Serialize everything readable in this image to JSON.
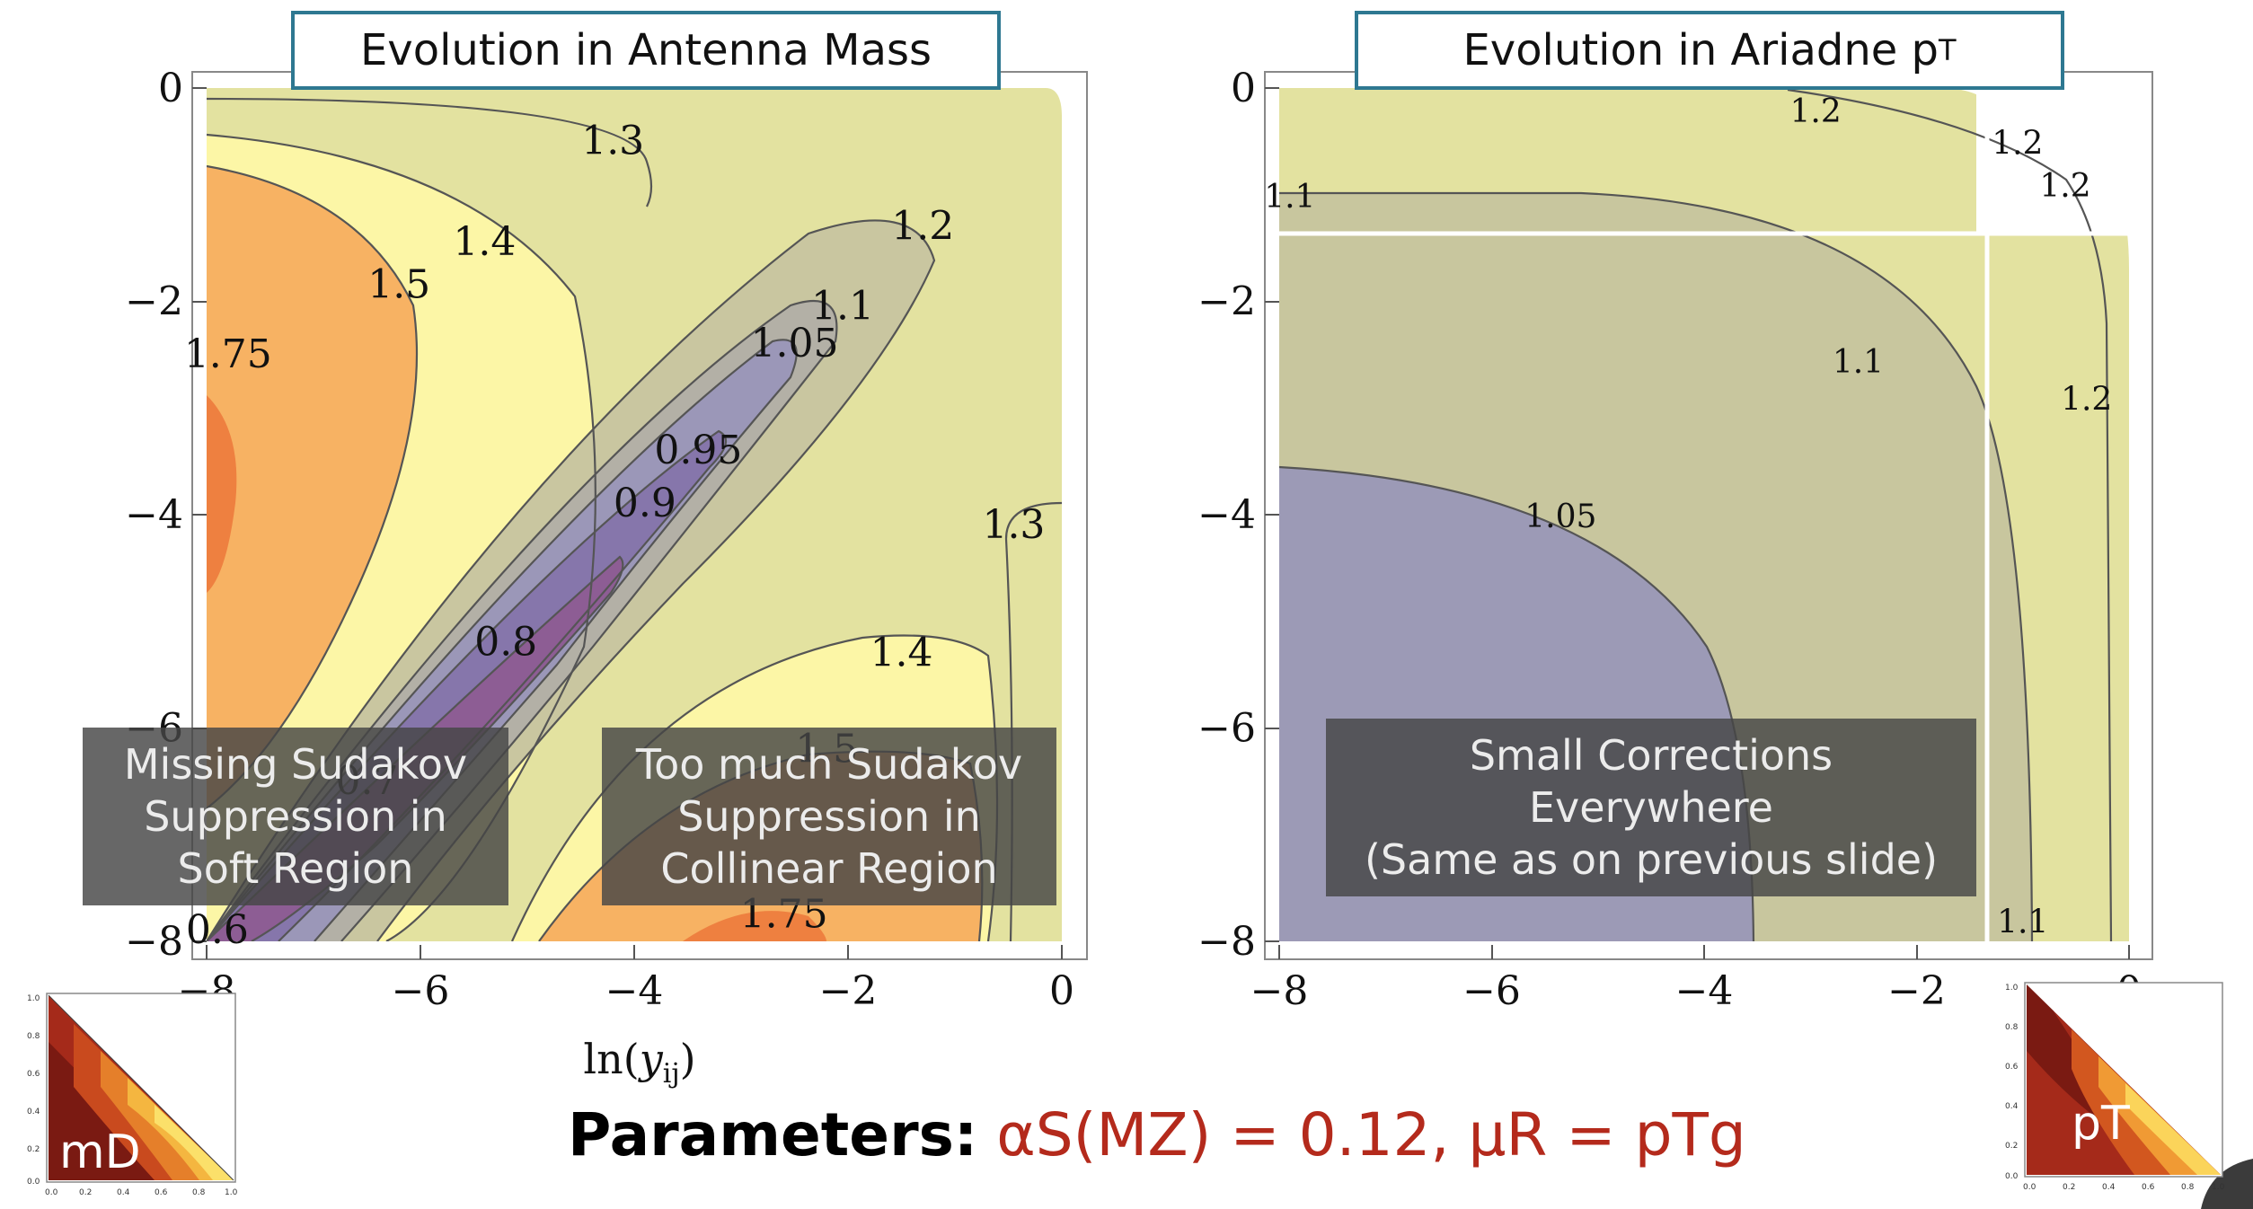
{
  "titles": {
    "left_prefix": "Evolution in Antenna Mass",
    "right_prefix": "Evolution in Ariadne p",
    "right_sub": "T"
  },
  "overlays": {
    "left1": "Missing Sudakov\nSuppression in\nSoft Region",
    "left2": "Too much Sudakov\nSuppression in\nCollinear Region",
    "right": "Small Corrections\nEverywhere\n(Same as on previous slide)"
  },
  "params": {
    "label": "Parameters:",
    "value": "αS(MZ) = 0.12, μR = pTg"
  },
  "thumbs": {
    "left_label": "mD",
    "right_label": "pT"
  },
  "chart_data": [
    {
      "type": "heatmap",
      "title": "Evolution in Antenna Mass",
      "xlabel": "ln(y_ij)",
      "ylabel": "",
      "xlim": [
        -8,
        0
      ],
      "ylim": [
        -8,
        0
      ],
      "xticks": [
        "−8",
        "−6",
        "−4",
        "−2",
        "0"
      ],
      "yticks": [
        "0",
        "−2",
        "−4",
        "−6",
        "−8"
      ],
      "contour_labels": [
        {
          "text": "1.3",
          "x": -4.2,
          "y": -0.5
        },
        {
          "text": "1.4",
          "x": -5.4,
          "y": -1.45
        },
        {
          "text": "1.5",
          "x": -6.2,
          "y": -1.85
        },
        {
          "text": "1.75",
          "x": -7.8,
          "y": -2.5
        },
        {
          "text": "1.2",
          "x": -1.3,
          "y": -1.3
        },
        {
          "text": "1.1",
          "x": -2.05,
          "y": -2.05
        },
        {
          "text": "1.05",
          "x": -2.5,
          "y": -2.4
        },
        {
          "text": "0.95",
          "x": -3.4,
          "y": -3.4
        },
        {
          "text": "0.9",
          "x": -3.9,
          "y": -3.9
        },
        {
          "text": "1.3",
          "x": -0.45,
          "y": -4.1
        },
        {
          "text": "0.8",
          "x": -5.2,
          "y": -5.2
        },
        {
          "text": "1.4",
          "x": -1.5,
          "y": -5.3
        },
        {
          "text": "0.7",
          "x": -6.5,
          "y": -6.5
        },
        {
          "text": "1.5",
          "x": -2.2,
          "y": -6.2
        },
        {
          "text": "1.75",
          "x": -2.6,
          "y": -7.75
        },
        {
          "text": "0.6",
          "x": -7.9,
          "y": -7.9
        }
      ]
    },
    {
      "type": "heatmap",
      "title": "Evolution in Ariadne pT",
      "xlim": [
        -8,
        0
      ],
      "ylim": [
        -8,
        0
      ],
      "xticks": [
        "−8",
        "−6",
        "−4",
        "−2",
        "0"
      ],
      "yticks": [
        "0",
        "−2",
        "−4",
        "−6",
        "−8"
      ],
      "contour_labels": [
        {
          "text": "1.2",
          "x": -2.95,
          "y": -0.2
        },
        {
          "text": "1.2",
          "x": -1.05,
          "y": -0.5
        },
        {
          "text": "1.2",
          "x": -0.6,
          "y": -0.9
        },
        {
          "text": "1.1",
          "x": -7.9,
          "y": -1.0
        },
        {
          "text": "1.1",
          "x": -2.55,
          "y": -2.55
        },
        {
          "text": "1.2",
          "x": -0.4,
          "y": -2.9
        },
        {
          "text": "1.05",
          "x": -5.35,
          "y": -4.0
        },
        {
          "text": "1.1",
          "x": -1.0,
          "y": -7.8
        }
      ]
    }
  ]
}
